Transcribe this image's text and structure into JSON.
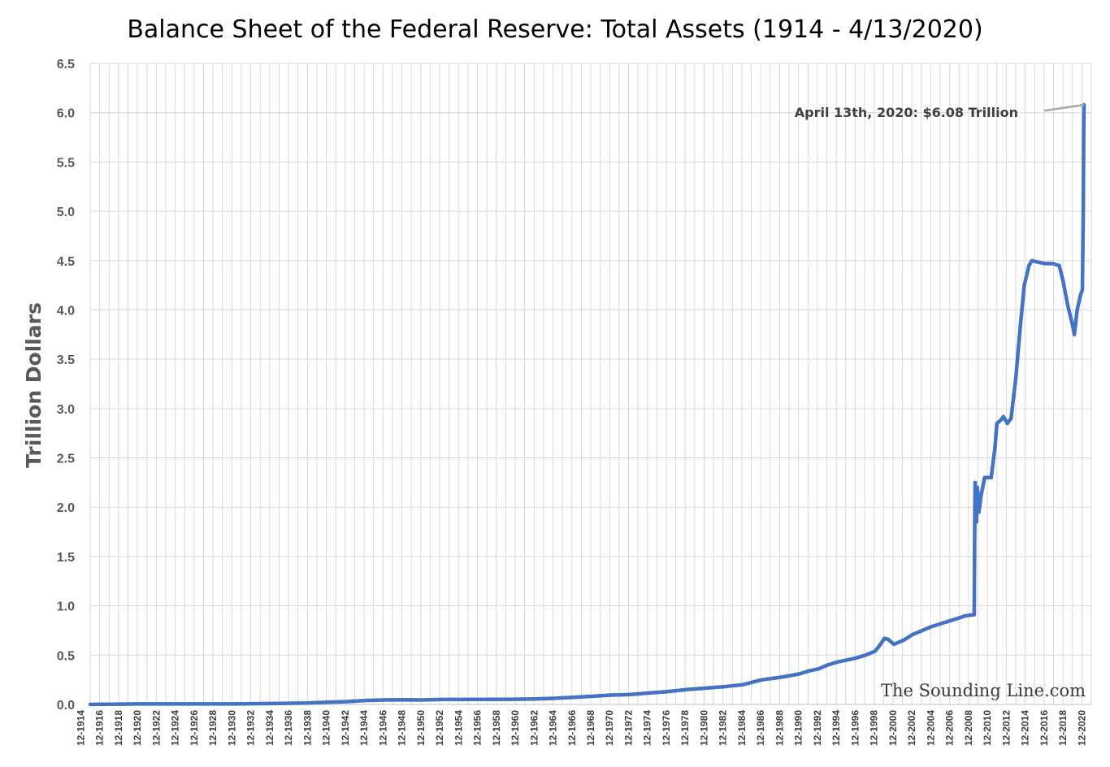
{
  "chart_data": {
    "type": "line",
    "title": "Balance Sheet of the Federal Reserve: Total Assets (1914 - 4/13/2020)",
    "xlabel": "",
    "ylabel": "Trillion Dollars",
    "ylim": [
      0,
      6.5
    ],
    "y_ticks": [
      "0.0",
      "0.5",
      "1.0",
      "1.5",
      "2.0",
      "2.5",
      "3.0",
      "3.5",
      "4.0",
      "4.5",
      "5.0",
      "5.5",
      "6.0",
      "6.5"
    ],
    "x_tick_labels": [
      "12-1914",
      "12-1916",
      "12-1918",
      "12-1920",
      "12-1922",
      "12-1924",
      "12-1926",
      "12-1928",
      "12-1930",
      "12-1932",
      "12-1934",
      "12-1936",
      "12-1938",
      "12-1940",
      "12-1942",
      "12-1944",
      "12-1946",
      "12-1948",
      "12-1950",
      "12-1952",
      "12-1954",
      "12-1956",
      "12-1958",
      "12-1960",
      "12-1962",
      "12-1964",
      "12-1966",
      "12-1968",
      "12-1970",
      "12-1972",
      "12-1974",
      "12-1976",
      "12-1978",
      "12-1980",
      "12-1982",
      "12-1984",
      "12-1986",
      "12-1988",
      "12-1990",
      "12-1992",
      "12-1994",
      "12-1996",
      "12-1998",
      "12-2000",
      "12-2002",
      "12-2004",
      "12-2006",
      "12-2008",
      "12-2010",
      "12-2012",
      "12-2014",
      "12-2016",
      "12-2018",
      "12-2020"
    ],
    "grid": true,
    "line_color": "#4472c4",
    "grid_color": "#d9d9d9",
    "series": [
      {
        "name": "Total Assets",
        "points": [
          [
            1914.9,
            0.0
          ],
          [
            1918,
            0.003
          ],
          [
            1920,
            0.005
          ],
          [
            1925,
            0.005
          ],
          [
            1930,
            0.005
          ],
          [
            1935,
            0.01
          ],
          [
            1938,
            0.015
          ],
          [
            1940,
            0.022
          ],
          [
            1942,
            0.028
          ],
          [
            1944,
            0.04
          ],
          [
            1946,
            0.045
          ],
          [
            1948,
            0.048
          ],
          [
            1950,
            0.045
          ],
          [
            1952,
            0.05
          ],
          [
            1954,
            0.05
          ],
          [
            1956,
            0.052
          ],
          [
            1958,
            0.052
          ],
          [
            1960,
            0.053
          ],
          [
            1962,
            0.056
          ],
          [
            1964,
            0.062
          ],
          [
            1966,
            0.072
          ],
          [
            1968,
            0.082
          ],
          [
            1970,
            0.095
          ],
          [
            1972,
            0.1
          ],
          [
            1974,
            0.115
          ],
          [
            1976,
            0.13
          ],
          [
            1978,
            0.15
          ],
          [
            1980,
            0.165
          ],
          [
            1982,
            0.18
          ],
          [
            1984,
            0.2
          ],
          [
            1985,
            0.225
          ],
          [
            1986,
            0.25
          ],
          [
            1988,
            0.275
          ],
          [
            1990,
            0.31
          ],
          [
            1991,
            0.34
          ],
          [
            1992,
            0.36
          ],
          [
            1993,
            0.4
          ],
          [
            1994,
            0.43
          ],
          [
            1996,
            0.47
          ],
          [
            1997,
            0.5
          ],
          [
            1998,
            0.54
          ],
          [
            1998.5,
            0.6
          ],
          [
            1999,
            0.67
          ],
          [
            1999.4,
            0.66
          ],
          [
            2000,
            0.61
          ],
          [
            2001,
            0.65
          ],
          [
            2002,
            0.71
          ],
          [
            2003,
            0.75
          ],
          [
            2004,
            0.79
          ],
          [
            2005,
            0.82
          ],
          [
            2006,
            0.85
          ],
          [
            2007,
            0.88
          ],
          [
            2007.6,
            0.9
          ],
          [
            2008.5,
            0.91
          ],
          [
            2008.55,
            1.8
          ],
          [
            2008.6,
            2.25
          ],
          [
            2008.75,
            1.85
          ],
          [
            2008.85,
            2.2
          ],
          [
            2009.0,
            1.95
          ],
          [
            2009.2,
            2.1
          ],
          [
            2009.4,
            2.2
          ],
          [
            2009.6,
            2.3
          ],
          [
            2010.0,
            2.3
          ],
          [
            2010.3,
            2.3
          ],
          [
            2010.7,
            2.6
          ],
          [
            2010.9,
            2.85
          ],
          [
            2011.3,
            2.88
          ],
          [
            2011.6,
            2.92
          ],
          [
            2012.0,
            2.85
          ],
          [
            2012.4,
            2.9
          ],
          [
            2012.9,
            3.3
          ],
          [
            2013.4,
            3.85
          ],
          [
            2013.8,
            4.25
          ],
          [
            2014.3,
            4.45
          ],
          [
            2014.6,
            4.5
          ],
          [
            2015.0,
            4.49
          ],
          [
            2016.0,
            4.47
          ],
          [
            2016.8,
            4.47
          ],
          [
            2017.5,
            4.45
          ],
          [
            2017.9,
            4.3
          ],
          [
            2018.4,
            4.05
          ],
          [
            2018.9,
            3.85
          ],
          [
            2019.1,
            3.75
          ],
          [
            2019.4,
            4.0
          ],
          [
            2019.7,
            4.13
          ],
          [
            2019.85,
            4.18
          ],
          [
            2019.95,
            4.2
          ],
          [
            2020.05,
            5.0
          ],
          [
            2020.1,
            5.85
          ],
          [
            2020.13,
            6.08
          ]
        ]
      }
    ],
    "annotation": {
      "text": "April 13th, 2020: $6.08 Trillion",
      "target": [
        2020.13,
        6.08
      ],
      "leader_start": [
        2015.9,
        6.02
      ],
      "color": "#a6a6a6"
    }
  },
  "watermark": "The Sounding Line.com"
}
